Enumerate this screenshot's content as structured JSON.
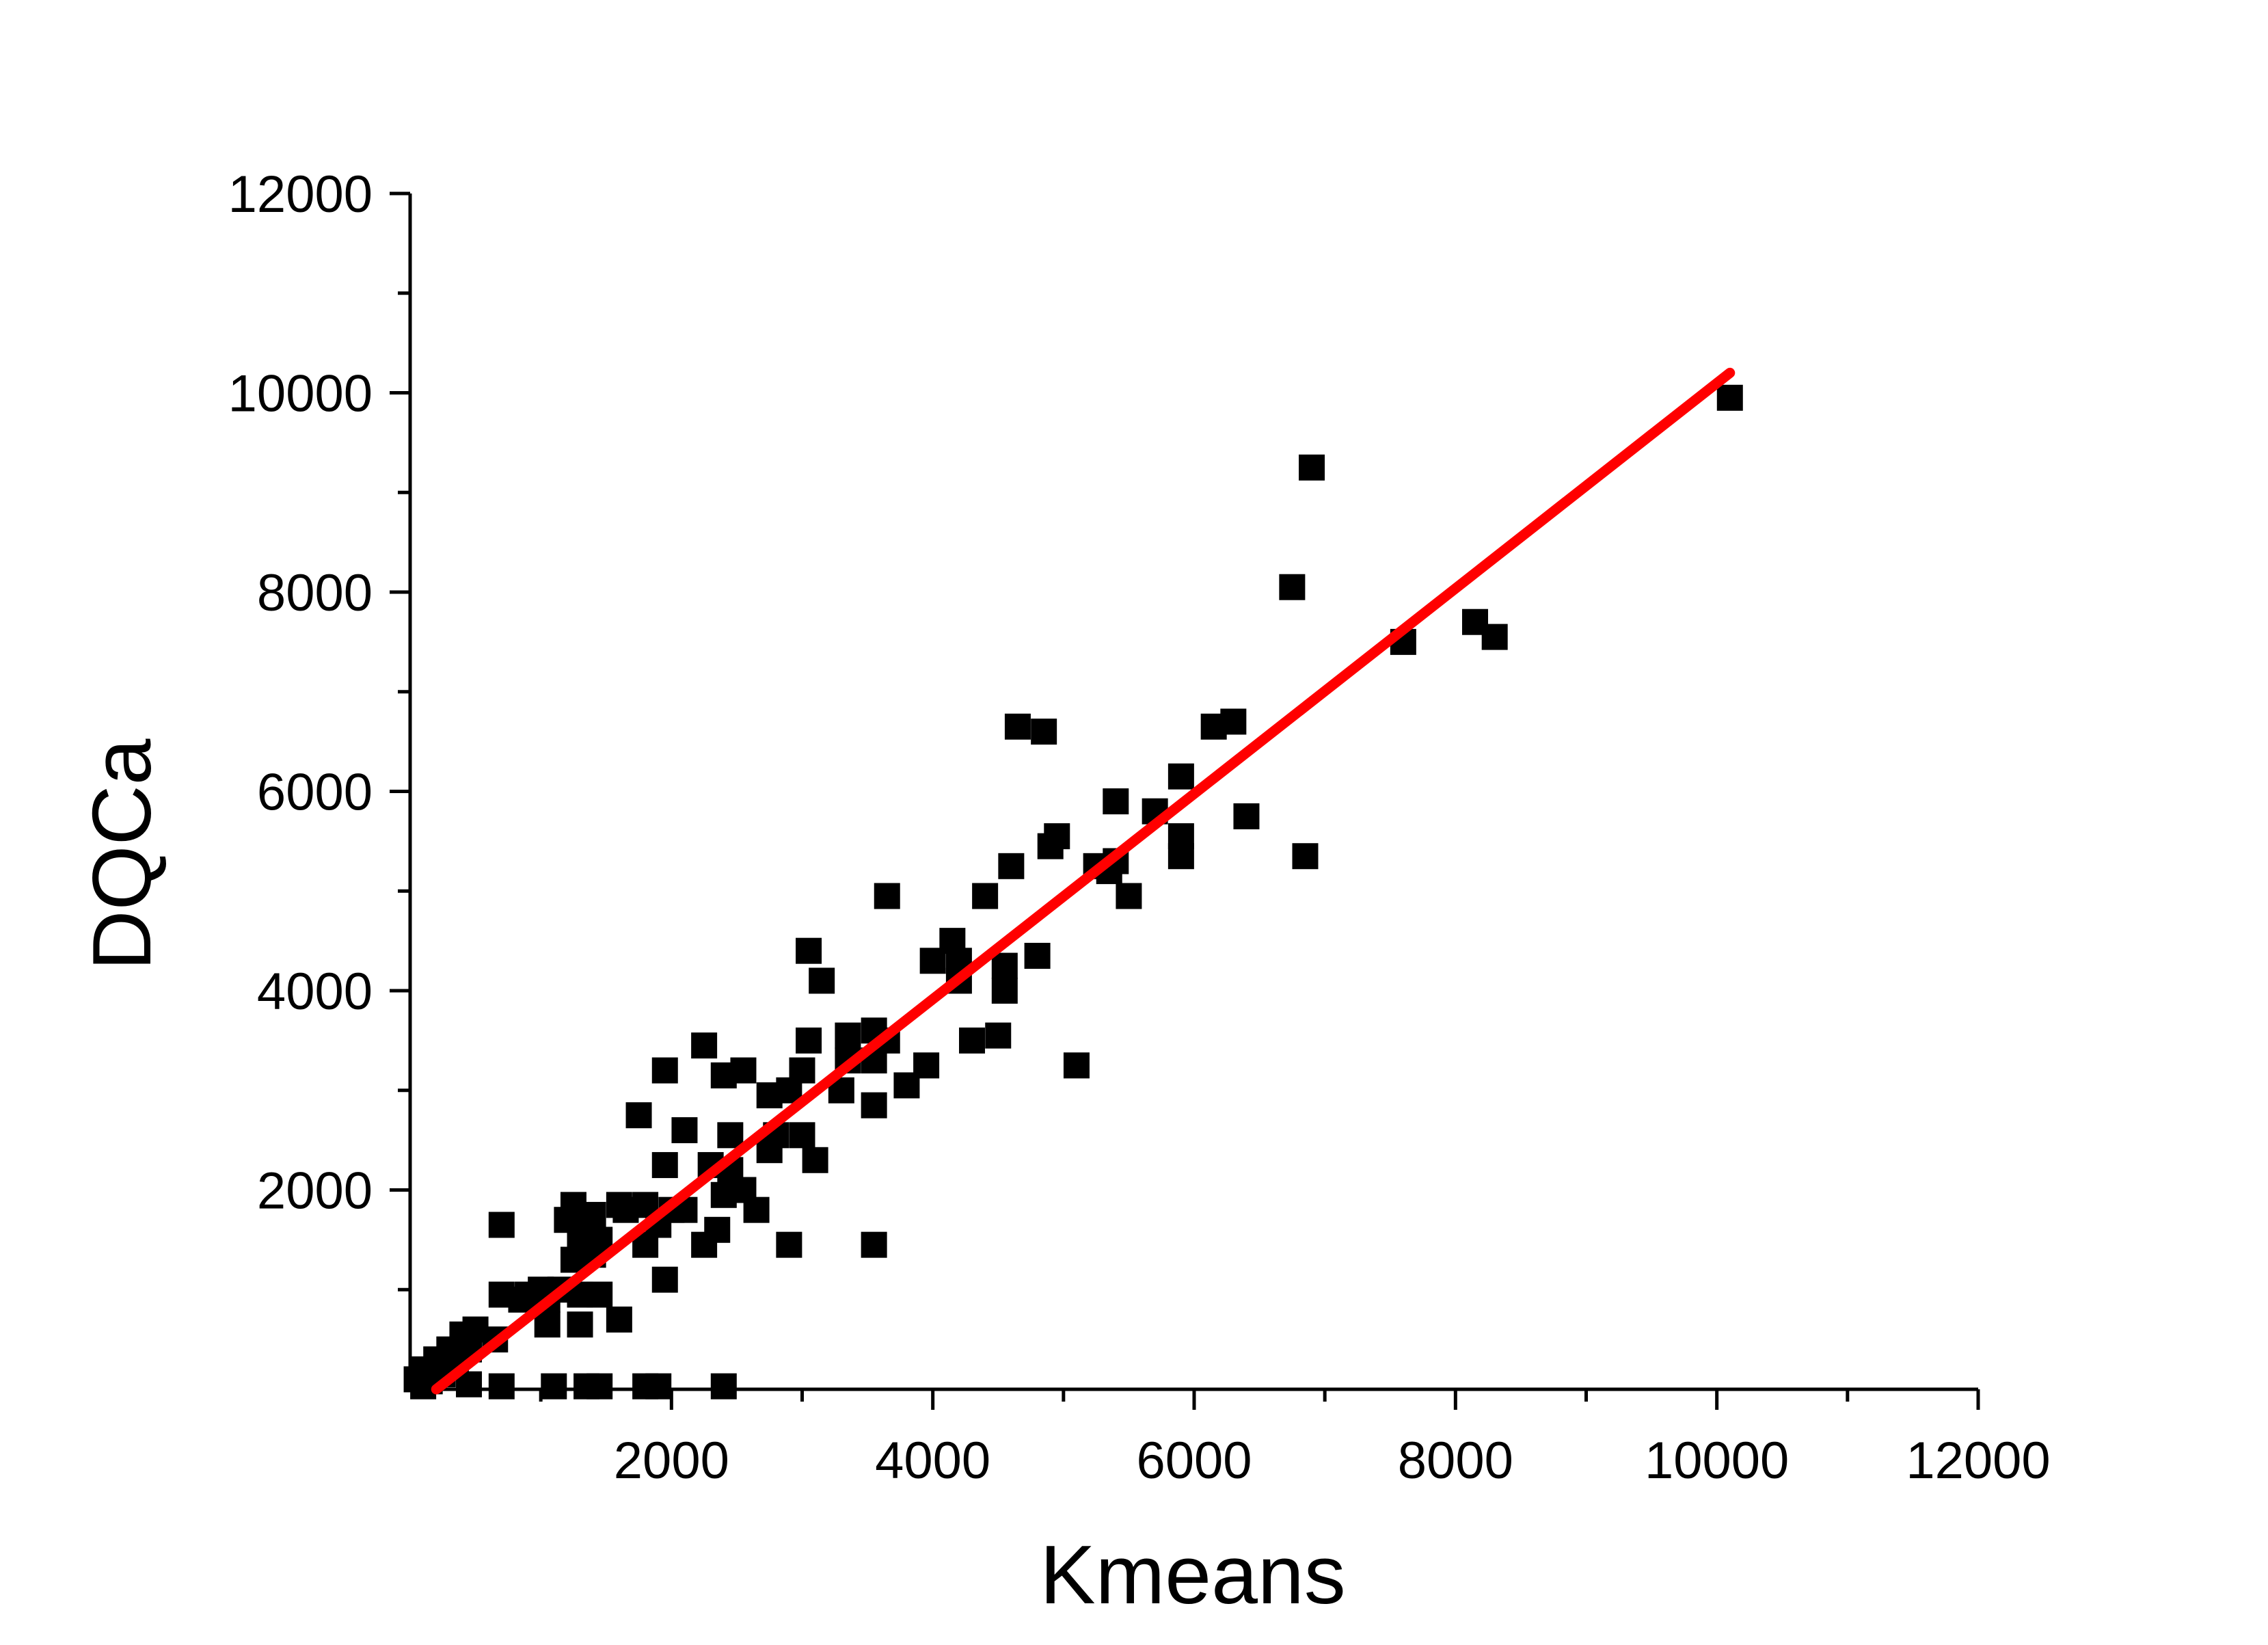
{
  "chart_data": {
    "type": "scatter",
    "title": "",
    "xlabel": "Kmeans",
    "ylabel": "DQCa",
    "xlim": [
      0,
      12000
    ],
    "ylim": [
      0,
      12000
    ],
    "x_ticks": [
      "2000",
      "4000",
      "6000",
      "8000",
      "10000",
      "12000"
    ],
    "y_ticks": [
      "2000",
      "4000",
      "6000",
      "8000",
      "10000",
      "12000"
    ],
    "grid": false,
    "legend": "none",
    "colors": {
      "points": "#000000",
      "fit_line": "#ff0000",
      "axes": "#000000"
    },
    "series": [
      {
        "marker": "square",
        "points": [
          [
            10100,
            9950
          ],
          [
            6900,
            9250
          ],
          [
            6750,
            8050
          ],
          [
            8150,
            7700
          ],
          [
            8300,
            7550
          ],
          [
            7600,
            7500
          ],
          [
            6300,
            6700
          ],
          [
            6150,
            6650
          ],
          [
            4650,
            6650
          ],
          [
            4850,
            6600
          ],
          [
            5900,
            6150
          ],
          [
            5400,
            5900
          ],
          [
            5700,
            5800
          ],
          [
            6400,
            5750
          ],
          [
            4950,
            5550
          ],
          [
            5900,
            5550
          ],
          [
            4900,
            5450
          ],
          [
            5900,
            5350
          ],
          [
            6850,
            5350
          ],
          [
            5400,
            5300
          ],
          [
            4600,
            5250
          ],
          [
            5250,
            5250
          ],
          [
            5350,
            5200
          ],
          [
            3650,
            4950
          ],
          [
            4400,
            4950
          ],
          [
            5500,
            4950
          ],
          [
            3050,
            4400
          ],
          [
            4150,
            4500
          ],
          [
            4000,
            4300
          ],
          [
            4200,
            4300
          ],
          [
            4800,
            4350
          ],
          [
            4550,
            4250
          ],
          [
            3150,
            4100
          ],
          [
            4200,
            4100
          ],
          [
            4550,
            4000
          ],
          [
            3350,
            3550
          ],
          [
            3550,
            3600
          ],
          [
            4300,
            3500
          ],
          [
            4500,
            3550
          ],
          [
            3050,
            3500
          ],
          [
            3650,
            3500
          ],
          [
            2250,
            3450
          ],
          [
            3350,
            3300
          ],
          [
            3550,
            3300
          ],
          [
            5100,
            3250
          ],
          [
            1950,
            3200
          ],
          [
            2400,
            3150
          ],
          [
            2550,
            3200
          ],
          [
            3000,
            3200
          ],
          [
            3950,
            3250
          ],
          [
            2750,
            2950
          ],
          [
            2900,
            3000
          ],
          [
            3300,
            3000
          ],
          [
            3800,
            3050
          ],
          [
            3550,
            2850
          ],
          [
            1750,
            2750
          ],
          [
            2100,
            2600
          ],
          [
            2450,
            2550
          ],
          [
            2800,
            2550
          ],
          [
            3000,
            2550
          ],
          [
            2750,
            2400
          ],
          [
            3100,
            2300
          ],
          [
            1950,
            2250
          ],
          [
            2300,
            2250
          ],
          [
            2450,
            2200
          ],
          [
            2550,
            2000
          ],
          [
            2400,
            1950
          ],
          [
            1600,
            1850
          ],
          [
            1800,
            1850
          ],
          [
            2100,
            1800
          ],
          [
            1250,
            1850
          ],
          [
            1650,
            1800
          ],
          [
            1200,
            1700
          ],
          [
            1400,
            1750
          ],
          [
            2000,
            1800
          ],
          [
            2650,
            1800
          ],
          [
            700,
            1650
          ],
          [
            1350,
            1600
          ],
          [
            1900,
            1650
          ],
          [
            2350,
            1600
          ],
          [
            1300,
            1550
          ],
          [
            1450,
            1500
          ],
          [
            2250,
            1450
          ],
          [
            2900,
            1450
          ],
          [
            3550,
            1450
          ],
          [
            1800,
            1450
          ],
          [
            1250,
            1300
          ],
          [
            1400,
            1350
          ],
          [
            1950,
            1100
          ],
          [
            1000,
            1000
          ],
          [
            1150,
            1000
          ],
          [
            1300,
            950
          ],
          [
            1450,
            950
          ],
          [
            700,
            950
          ],
          [
            900,
            950
          ],
          [
            1050,
            900
          ],
          [
            850,
            900
          ],
          [
            1300,
            650
          ],
          [
            1600,
            700
          ],
          [
            1050,
            650
          ],
          [
            500,
            600
          ],
          [
            400,
            550
          ],
          [
            650,
            500
          ],
          [
            300,
            400
          ],
          [
            450,
            400
          ],
          [
            200,
            300
          ],
          [
            350,
            250
          ],
          [
            100,
            200
          ],
          [
            250,
            150
          ],
          [
            50,
            100
          ],
          [
            150,
            80
          ],
          [
            100,
            30
          ],
          [
            450,
            50
          ],
          [
            700,
            30
          ],
          [
            1100,
            30
          ],
          [
            1350,
            30
          ],
          [
            1450,
            30
          ],
          [
            1800,
            30
          ],
          [
            1900,
            30
          ],
          [
            2400,
            30
          ]
        ]
      }
    ],
    "fit_line": {
      "x": [
        200,
        10100
      ],
      "y": [
        0,
        10200
      ]
    }
  }
}
